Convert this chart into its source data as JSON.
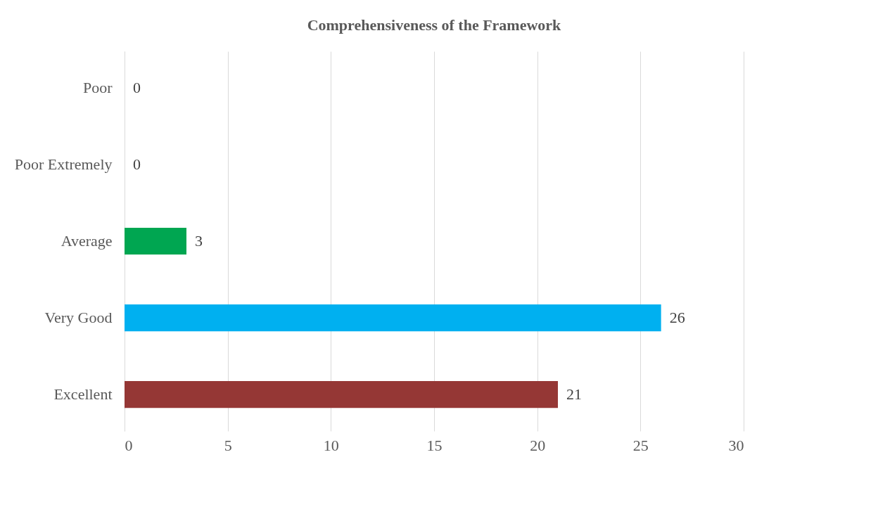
{
  "chart_data": {
    "type": "bar",
    "orientation": "horizontal",
    "title": "Comprehensiveness of the Framework",
    "categories": [
      "Poor",
      "Poor Extremely",
      "Average",
      "Very Good",
      "Excellent"
    ],
    "values": [
      0,
      0,
      3,
      26,
      21
    ],
    "colors": [
      "#4f81bd",
      "#c0504d",
      "#00a651",
      "#00b0f0",
      "#953735"
    ],
    "xlim": [
      0,
      30
    ],
    "xticks": [
      0,
      5,
      10,
      15,
      20,
      25,
      30
    ],
    "grid": "x",
    "data_labels": true,
    "legend": false
  }
}
